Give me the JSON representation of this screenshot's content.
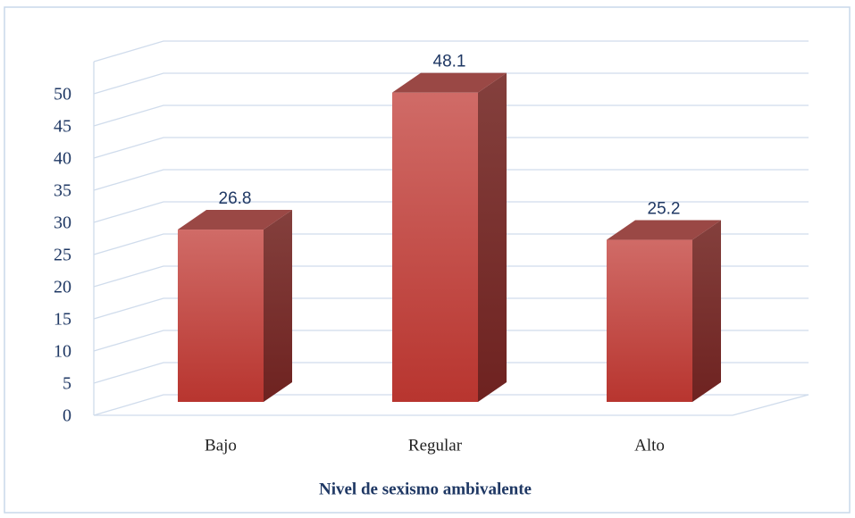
{
  "chart_data": {
    "type": "bar3d",
    "x_label": "Nivel de sexismo ambivalente",
    "categories": [
      "Bajo",
      "Regular",
      "Alto"
    ],
    "values": [
      26.8,
      48.1,
      25.2
    ],
    "value_labels": [
      "26.8",
      "48.1",
      "25.2"
    ],
    "color": "#c4443f",
    "ylim": [
      0,
      55
    ],
    "yticks": [
      0,
      5,
      10,
      15,
      20,
      25,
      30,
      35,
      40,
      45,
      50
    ],
    "grid": true
  }
}
